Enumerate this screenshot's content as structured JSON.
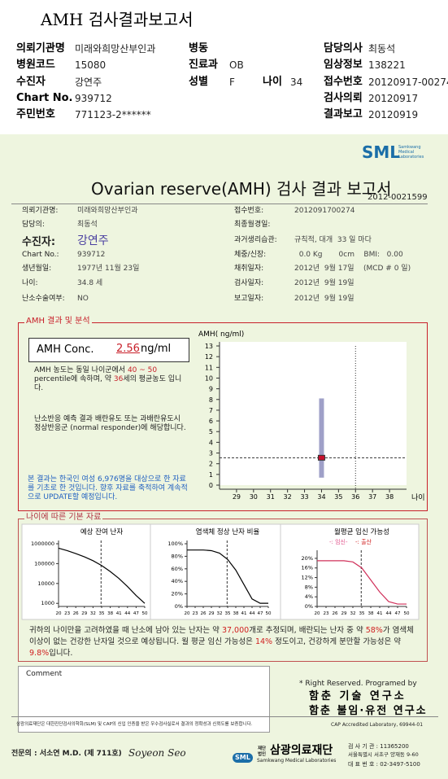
{
  "header": {
    "title": "AMH 검사결과보고서",
    "fields": [
      {
        "label": "의뢰기관명",
        "value": "미래와희망산부인과"
      },
      {
        "label": "병동"
      },
      {
        "label": "담당의사",
        "value": "최동석"
      },
      {
        "label": "병원코드",
        "value": "15080"
      },
      {
        "label": "진료과",
        "value": "OB"
      },
      {
        "label": "임상정보",
        "value": "138221"
      },
      {
        "label": "수진자",
        "value": "강연주"
      },
      {
        "label": "성별",
        "value": "F"
      },
      {
        "label": "나이",
        "value": "34"
      },
      {
        "label": "접수번호",
        "value": "20120917-00274"
      },
      {
        "label": "Chart No.",
        "value": "939712"
      },
      {
        "label": "검사의뢰",
        "value": "20120917"
      },
      {
        "label": "주민번호",
        "value": "771123-2******"
      },
      {
        "label": "결과보고",
        "value": "20120919"
      }
    ]
  },
  "report": {
    "logo": "SML",
    "logo_sub": "Samkwang Medical Laboratories",
    "title": "Ovarian reserve(AMH) 검사 결과 보고서",
    "report_no": "2012-0021599",
    "left_fields": [
      {
        "label": "의뢰기관명:",
        "value": "미래와희망산부인과"
      },
      {
        "label": "담당의:",
        "value": "최동석"
      },
      {
        "label": "수진자:",
        "value": "강연주"
      },
      {
        "label": "Chart No.:",
        "value": "939712"
      },
      {
        "label": "생년월일:",
        "value": "1977년 11월 23일"
      },
      {
        "label": "나이:",
        "value": "34.8 세"
      },
      {
        "label": "난소수술여부:",
        "value": "NO"
      }
    ],
    "right_fields": [
      {
        "label": "접수번호:",
        "value": "2012091700274"
      },
      {
        "label": "최종월경일:"
      },
      {
        "label": "과거생리습관:",
        "value": "규칙적, 대개  33 일 마다"
      },
      {
        "label": "체중/신장:",
        "value": "  0.0 Kg       0cm    BMI:   0.00"
      },
      {
        "label": "채취일자:",
        "value": "2012년  9월 17일    (MCD # 0 일)"
      },
      {
        "label": "검사일자:",
        "value": "2012년  9월 19일"
      },
      {
        "label": "보고일자:",
        "value": "2012년  9월 19일"
      }
    ]
  },
  "amh": {
    "section_title": "AMH 결과 및 분석",
    "label": "AMH Conc.",
    "value": "2.56",
    "unit": "ng/ml",
    "p1": [
      "AMH 농도는 동일 나이군에서 ",
      "40 ~ 50",
      " percentile에 속하며, 약 ",
      "36",
      "세의 평균농도 입니다."
    ],
    "p2": "난소반응 예측 결과 배란유도 또는 과배란유도시 정상반응군 (normal responder)에 해당합니다.",
    "p3": "본 결과는 한국인 여성 6,976명을 대상으로 한 자료를 기초로 한 것입니다. 향후 자료를 축적하여 계속적으로 UPDATE할 예정입니다.",
    "chart": {
      "type": "range",
      "y_label": "AMH( ng/ml)",
      "x_label": "나이",
      "ylim": [
        0,
        13
      ],
      "yticks": [
        0,
        1,
        2,
        3,
        4,
        5,
        6,
        7,
        8,
        9,
        10,
        11,
        12,
        13
      ],
      "xlim": [
        28,
        39
      ],
      "xticks": [
        29,
        30,
        31,
        32,
        33,
        34,
        35,
        36,
        37,
        38
      ],
      "age": 34,
      "range": [
        0.7,
        8.1
      ],
      "value": 2.56,
      "reference_age": 36,
      "color": "#9fa0c8",
      "marker_color": "#c8102e"
    }
  },
  "age_data": {
    "section_title": "나이에 따른 기본 자료",
    "charts": [
      {
        "type": "line",
        "title": "예상 잔여 난자",
        "log_scale": true,
        "color": "#000000",
        "x": [
          20,
          23,
          26,
          29,
          32,
          35,
          38,
          41,
          44,
          47,
          50
        ],
        "values": [
          600000,
          450000,
          320000,
          220000,
          140000,
          80000,
          40000,
          18000,
          7000,
          2500,
          1000
        ],
        "xlim": [
          20,
          50
        ],
        "xticks": [
          20,
          23,
          26,
          29,
          32,
          35,
          38,
          41,
          44,
          47,
          50
        ],
        "ylim": [
          700,
          1000000
        ],
        "yticks": [
          1000,
          10000,
          100000,
          1000000
        ],
        "age_line": 34.8
      },
      {
        "type": "line",
        "title": "염색체 정상 난자 비율",
        "log_scale": false,
        "color": "#000000",
        "x": [
          20,
          23,
          26,
          29,
          32,
          35,
          38,
          41,
          44,
          47,
          50
        ],
        "values": [
          90,
          90,
          90,
          89,
          85,
          75,
          58,
          35,
          12,
          5,
          5
        ],
        "xlim": [
          20,
          50
        ],
        "xticks": [
          20,
          23,
          26,
          29,
          32,
          35,
          38,
          41,
          44,
          47,
          50
        ],
        "ylim": [
          0,
          100
        ],
        "yticks": [
          {
            "value": 0,
            "label": "0%"
          },
          {
            "value": 20,
            "label": "20%"
          },
          {
            "value": 40,
            "label": "40%"
          },
          {
            "value": 60,
            "label": "60%"
          },
          {
            "value": 80,
            "label": "80%"
          },
          {
            "value": 100,
            "label": "100%"
          }
        ],
        "age_line": 34.8
      },
      {
        "type": "line",
        "title": "월평균 임신 가능성",
        "log_scale": false,
        "color": "#d0305a",
        "legend": [
          {
            "name": "-: 임신-",
            "color": "#e0508a"
          },
          {
            "name": "-: 출산",
            "color": "#d02020"
          }
        ],
        "x": [
          20,
          23,
          26,
          29,
          32,
          35,
          38,
          41,
          44,
          47,
          50
        ],
        "values": [
          19,
          19,
          19,
          19,
          18.5,
          16,
          11,
          6,
          2,
          1,
          1
        ],
        "xlim": [
          20,
          50
        ],
        "xticks": [
          20,
          23,
          26,
          29,
          32,
          35,
          38,
          41,
          44,
          47,
          50
        ],
        "ylim": [
          0,
          22
        ],
        "yticks": [
          {
            "value": 0,
            "label": "0%"
          },
          {
            "value": 4,
            "label": "4%"
          },
          {
            "value": 8,
            "label": "8%"
          },
          {
            "value": 12,
            "label": "12%"
          },
          {
            "value": 16,
            "label": "16%"
          },
          {
            "value": 20,
            "label": "20%"
          }
        ],
        "age_line": 34.8
      }
    ],
    "summary": [
      "귀하의 나이만을 고려하였을 때 난소에 남아 있는 난자는 약 ",
      "37,000",
      "개로 추정되며, 배란되는 난자 중 약 ",
      "58%",
      "가 염색체이상이 없는 건강한 난자일 것으로 예상됩니다. 월 평균 임신 가능성은 ",
      "14%",
      " 정도이고, 건강하게 분만할 가능성은 약 ",
      "9.8%",
      "입니다."
    ]
  },
  "comment": {
    "label": "Comment"
  },
  "credits": {
    "rights": "* Right Reserved. Programed by",
    "lab1": "함춘 기술 연구소",
    "lab2": "함춘 불임·유전 연구소"
  },
  "footer": {
    "notice": "삼광의료재단은 대한진단검사의학회(SLM) 및 CAP의 신입 인증을 받은 우수검사실로서 결과의 정확성과 신뢰도를 보증합니다.",
    "cap": "CAP Accredited Laboratory, 69944-01",
    "doctor": "전문의 : 서소연 M.D. (제 711호)",
    "signature": "Soyeon Seo",
    "org_badge": "재단법인",
    "org": "삼광의료재단",
    "org_en": "Samkwang Medical Laboratories",
    "org_logo": "SML",
    "code": "검 사 기 관 : 11365200",
    "address": "서울특별시 서초구 양재동 9-60",
    "phone": "대 표 번 호 : 02-3497-5100"
  }
}
